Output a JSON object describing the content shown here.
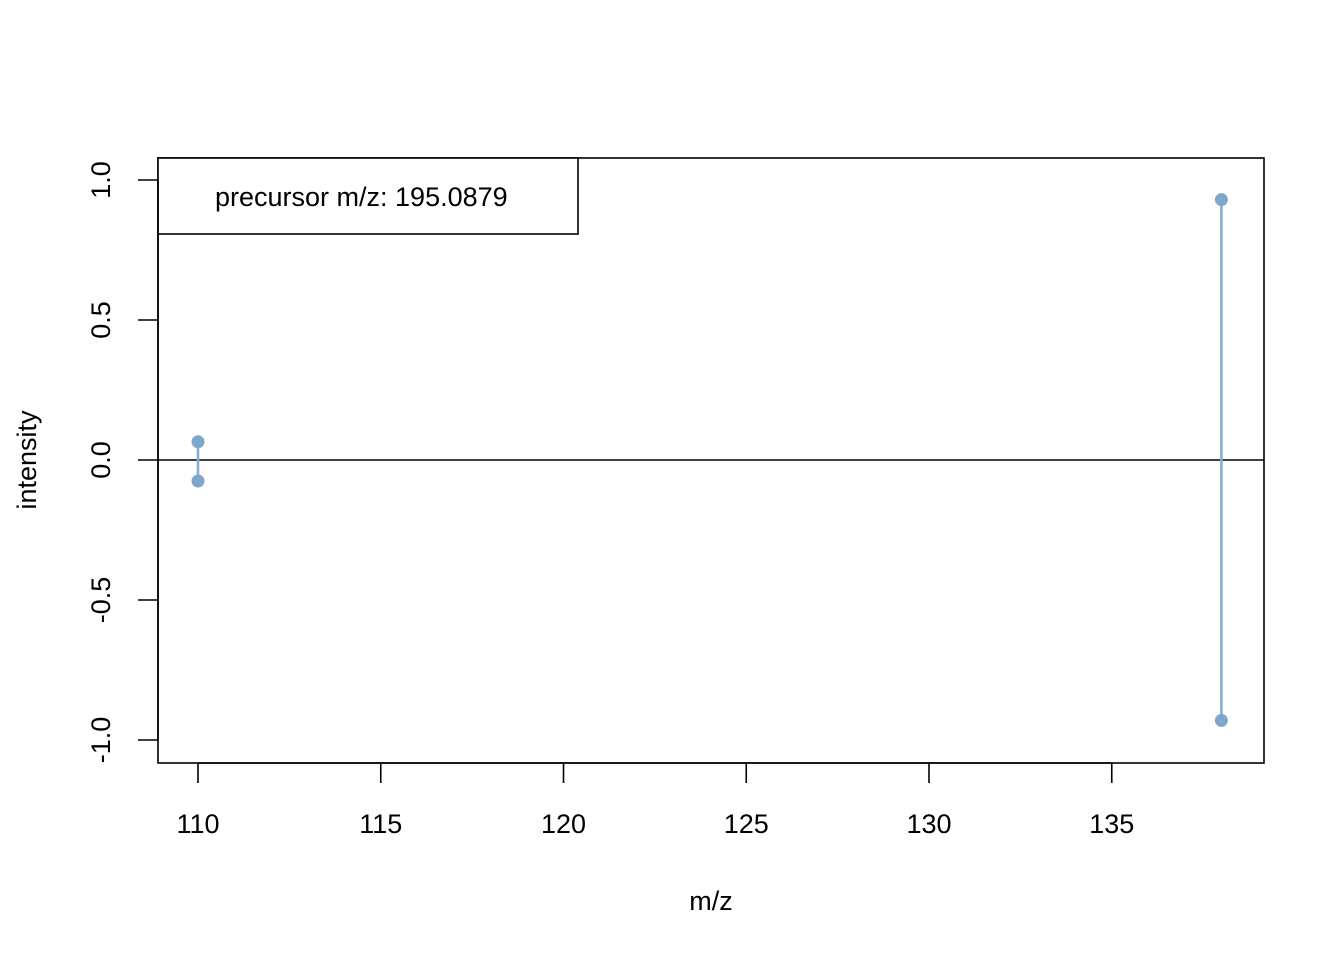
{
  "chart_data": {
    "type": "mirror-spectrum",
    "xlabel": "m/z",
    "ylabel": "intensity",
    "xlim": [
      109,
      139.2
    ],
    "ylim": [
      -1.0,
      1.0
    ],
    "x_ticks": [
      110,
      115,
      120,
      125,
      130,
      135
    ],
    "y_ticks": [
      -1.0,
      -0.5,
      0.0,
      0.5,
      1.0
    ],
    "y_tick_labels": [
      "-1.0",
      "-0.5",
      "0.0",
      "0.5",
      "1.0"
    ],
    "legend": {
      "text": "precursor m/z: 195.0879",
      "position": "top-left"
    },
    "series": [
      {
        "peaks": [
          {
            "mz": 110.0,
            "intensity": 0.065
          },
          {
            "mz": 138.0,
            "intensity": 0.93
          }
        ]
      },
      {
        "peaks": [
          {
            "mz": 110.0,
            "intensity": -0.075
          },
          {
            "mz": 138.0,
            "intensity": -0.93
          }
        ]
      }
    ],
    "peak_color": "#8AAFCB",
    "peak_point_color": "#7FA7CB",
    "baseline": 0,
    "grid": false
  }
}
